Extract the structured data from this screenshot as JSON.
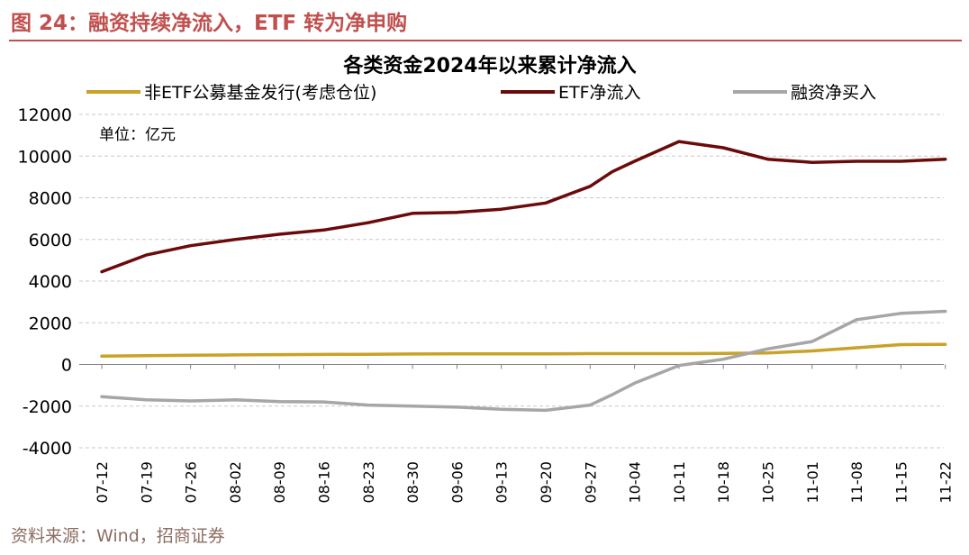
{
  "figure": {
    "title": "图 24：融资持续净流入，ETF 转为净申购",
    "source": "资料来源：Wind，招商证券"
  },
  "chart_data": {
    "type": "line",
    "title": "各类资金2024年以来累计净流入",
    "unit": "单位：亿元",
    "legend_position": "top",
    "grid": true,
    "ylim": [
      -4000,
      12000
    ],
    "yticks": [
      12000,
      10000,
      8000,
      6000,
      4000,
      2000,
      0,
      -2000,
      -4000
    ],
    "x": [
      "07-12",
      "07-19",
      "07-26",
      "08-02",
      "08-09",
      "08-16",
      "08-23",
      "08-30",
      "09-06",
      "09-13",
      "09-20",
      "09-27",
      "10-04",
      "10-11",
      "10-18",
      "10-25",
      "11-01",
      "11-08",
      "11-15",
      "11-22"
    ],
    "series": [
      {
        "name": "非ETF公募基金发行(考虑仓位)",
        "color": "#c9a227",
        "points": [
          [
            0,
            400
          ],
          [
            1,
            420
          ],
          [
            2,
            440
          ],
          [
            3,
            460
          ],
          [
            4,
            470
          ],
          [
            5,
            480
          ],
          [
            6,
            490
          ],
          [
            7,
            500
          ],
          [
            8,
            510
          ],
          [
            9,
            510
          ],
          [
            10,
            510
          ],
          [
            11,
            520
          ],
          [
            12,
            520
          ],
          [
            13,
            520
          ],
          [
            14,
            530
          ],
          [
            15,
            550
          ],
          [
            16,
            650
          ],
          [
            17,
            800
          ],
          [
            18,
            950
          ],
          [
            19,
            960
          ]
        ]
      },
      {
        "name": "ETF净流入",
        "color": "#6b0a0a",
        "points": [
          [
            0,
            4450
          ],
          [
            1,
            5250
          ],
          [
            2,
            5700
          ],
          [
            3,
            6000
          ],
          [
            4,
            6250
          ],
          [
            5,
            6450
          ],
          [
            6,
            6800
          ],
          [
            7,
            7250
          ],
          [
            8,
            7300
          ],
          [
            9,
            7450
          ],
          [
            10,
            7750
          ],
          [
            11,
            8550
          ],
          [
            11.5,
            9250
          ],
          [
            12,
            9750
          ],
          [
            13,
            10700
          ],
          [
            14,
            10400
          ],
          [
            15,
            9850
          ],
          [
            16,
            9700
          ],
          [
            17,
            9750
          ],
          [
            18,
            9750
          ],
          [
            19,
            9850
          ]
        ]
      },
      {
        "name": "融资净买入",
        "color": "#a6a6a6",
        "points": [
          [
            0,
            -1550
          ],
          [
            1,
            -1700
          ],
          [
            2,
            -1750
          ],
          [
            3,
            -1700
          ],
          [
            4,
            -1780
          ],
          [
            5,
            -1800
          ],
          [
            6,
            -1950
          ],
          [
            7,
            -2000
          ],
          [
            8,
            -2050
          ],
          [
            9,
            -2150
          ],
          [
            10,
            -2200
          ],
          [
            11,
            -1950
          ],
          [
            11.5,
            -1450
          ],
          [
            12,
            -900
          ],
          [
            13,
            -50
          ],
          [
            14,
            250
          ],
          [
            15,
            750
          ],
          [
            16,
            1100
          ],
          [
            17,
            2150
          ],
          [
            18,
            2450
          ],
          [
            19,
            2550
          ]
        ]
      }
    ]
  }
}
